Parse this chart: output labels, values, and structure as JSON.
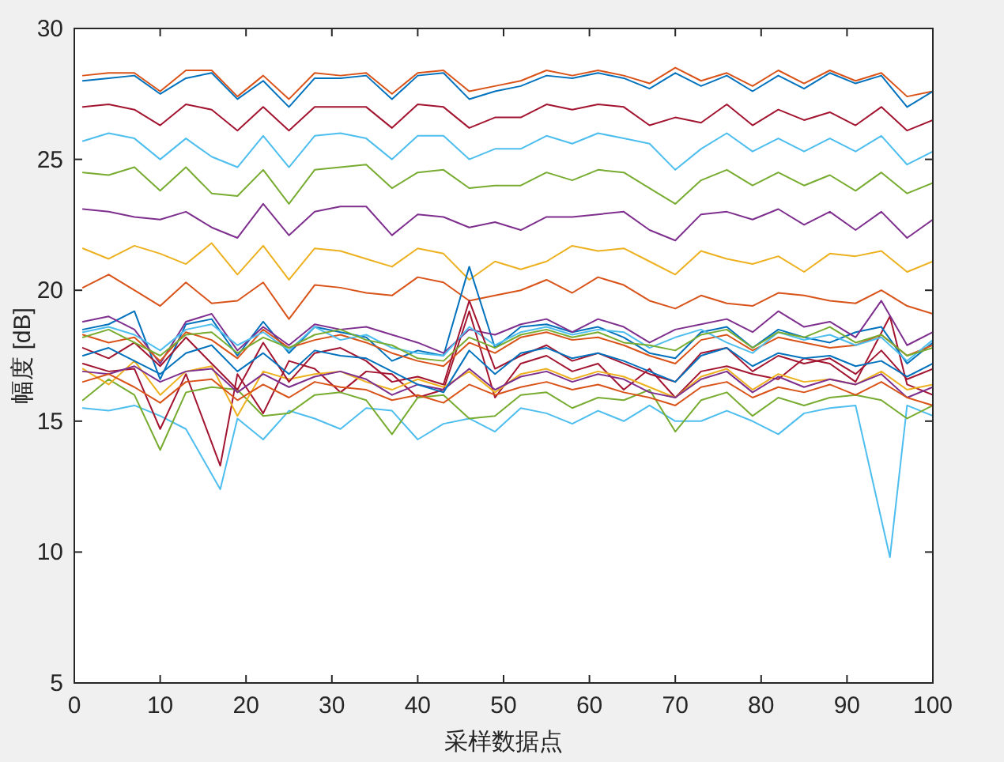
{
  "chart_data": {
    "type": "line",
    "xlabel": "采样数据点",
    "ylabel": "幅度 [dB]",
    "xlim": [
      0,
      100
    ],
    "ylim": [
      5,
      30
    ],
    "xticks": [
      0,
      10,
      20,
      30,
      40,
      50,
      60,
      70,
      80,
      90,
      100
    ],
    "yticks": [
      5,
      10,
      15,
      20,
      25,
      30
    ],
    "x": [
      1,
      4,
      7,
      10,
      13,
      16,
      19,
      22,
      25,
      28,
      31,
      34,
      37,
      40,
      43,
      46,
      49,
      52,
      55,
      58,
      61,
      64,
      67,
      70,
      73,
      76,
      79,
      82,
      85,
      88,
      91,
      94,
      97,
      100
    ],
    "series": [
      {
        "color": "#d95319",
        "values": [
          28.2,
          28.3,
          28.3,
          27.6,
          28.4,
          28.4,
          27.4,
          28.2,
          27.3,
          28.3,
          28.2,
          28.3,
          27.5,
          28.3,
          28.4,
          27.6,
          27.8,
          28.0,
          28.4,
          28.2,
          28.4,
          28.2,
          27.9,
          28.5,
          28.0,
          28.3,
          27.8,
          28.4,
          27.9,
          28.4,
          28.0,
          28.3,
          27.4,
          27.6
        ]
      },
      {
        "color": "#0072bd",
        "values": [
          28.0,
          28.1,
          28.2,
          27.5,
          28.1,
          28.3,
          27.3,
          28.0,
          27.0,
          28.1,
          28.1,
          28.2,
          27.3,
          28.2,
          28.3,
          27.3,
          27.6,
          27.8,
          28.2,
          28.1,
          28.3,
          28.1,
          27.7,
          28.3,
          27.8,
          28.2,
          27.6,
          28.2,
          27.7,
          28.3,
          27.9,
          28.2,
          27.0,
          27.6
        ]
      },
      {
        "color": "#a2142f",
        "values": [
          27.0,
          27.1,
          26.9,
          26.3,
          27.1,
          26.9,
          26.1,
          27.0,
          26.1,
          27.0,
          27.0,
          27.0,
          26.2,
          27.1,
          27.0,
          26.2,
          26.6,
          26.6,
          27.1,
          26.9,
          27.1,
          27.0,
          26.3,
          26.6,
          26.4,
          27.1,
          26.3,
          26.9,
          26.5,
          26.8,
          26.3,
          27.0,
          26.1,
          26.5
        ]
      },
      {
        "color": "#4dbeee",
        "values": [
          25.7,
          26.0,
          25.8,
          25.0,
          25.8,
          25.1,
          24.7,
          25.9,
          24.7,
          25.9,
          26.0,
          25.8,
          25.0,
          25.9,
          25.9,
          25.0,
          25.4,
          25.4,
          25.9,
          25.6,
          26.0,
          25.8,
          25.6,
          24.6,
          25.4,
          26.0,
          25.3,
          25.8,
          25.3,
          25.8,
          25.3,
          25.9,
          24.8,
          25.3
        ]
      },
      {
        "color": "#77ac30",
        "values": [
          24.5,
          24.4,
          24.7,
          23.8,
          24.7,
          23.7,
          23.6,
          24.6,
          23.3,
          24.6,
          24.7,
          24.8,
          23.9,
          24.5,
          24.6,
          23.9,
          24.0,
          24.0,
          24.5,
          24.2,
          24.6,
          24.5,
          23.9,
          23.3,
          24.2,
          24.6,
          24.0,
          24.5,
          24.0,
          24.4,
          23.8,
          24.5,
          23.7,
          24.1
        ]
      },
      {
        "color": "#7e2f8e",
        "values": [
          23.1,
          23.0,
          22.8,
          22.7,
          23.0,
          22.4,
          22.0,
          23.3,
          22.1,
          23.0,
          23.2,
          23.2,
          22.1,
          22.9,
          22.8,
          22.4,
          22.6,
          22.3,
          22.8,
          22.8,
          22.9,
          23.0,
          22.3,
          21.9,
          22.9,
          23.0,
          22.7,
          23.1,
          22.5,
          23.0,
          22.3,
          23.0,
          22.0,
          22.7
        ]
      },
      {
        "color": "#edb120",
        "values": [
          21.6,
          21.2,
          21.7,
          21.4,
          21.0,
          21.8,
          20.6,
          21.7,
          20.4,
          21.6,
          21.5,
          21.2,
          20.9,
          21.6,
          21.4,
          20.4,
          21.1,
          20.8,
          21.1,
          21.7,
          21.5,
          21.6,
          21.1,
          20.6,
          21.5,
          21.2,
          21.0,
          21.3,
          20.7,
          21.4,
          21.3,
          21.5,
          20.7,
          21.1
        ]
      },
      {
        "color": "#d95319",
        "values": [
          20.1,
          20.6,
          20.0,
          19.4,
          20.3,
          19.5,
          19.6,
          20.3,
          18.9,
          20.2,
          20.1,
          19.9,
          19.8,
          20.5,
          20.3,
          19.6,
          19.8,
          20.0,
          20.4,
          19.9,
          20.5,
          20.2,
          19.6,
          19.3,
          19.8,
          19.5,
          19.4,
          19.9,
          19.8,
          19.6,
          19.5,
          20.0,
          19.4,
          19.1
        ]
      },
      {
        "color": "#4dbeee",
        "x": [
          1,
          4,
          7,
          10,
          13,
          17,
          19,
          22,
          25,
          28,
          31,
          34,
          37,
          40,
          43,
          46,
          49,
          52,
          55,
          58,
          61,
          64,
          67,
          70,
          73,
          76,
          79,
          82,
          85,
          88,
          91,
          95,
          97,
          100
        ],
        "values": [
          15.5,
          15.4,
          15.6,
          15.2,
          14.7,
          12.4,
          15.1,
          14.3,
          15.4,
          15.1,
          14.7,
          15.5,
          15.4,
          14.3,
          14.9,
          15.1,
          14.6,
          15.5,
          15.3,
          14.9,
          15.4,
          15.0,
          15.6,
          15.0,
          15.0,
          15.4,
          15.0,
          14.5,
          15.3,
          15.5,
          15.6,
          9.8,
          15.6,
          15.2
        ]
      },
      {
        "color": "#a2142f",
        "x": [
          1,
          4,
          7,
          10,
          13,
          17,
          19,
          22,
          25,
          28,
          31,
          34,
          37,
          40,
          43,
          46,
          49,
          52,
          55,
          58,
          61,
          64,
          67,
          70,
          73,
          76,
          79,
          82,
          85,
          88,
          91,
          95,
          97,
          100
        ],
        "values": [
          17.2,
          16.9,
          17.0,
          14.7,
          16.8,
          13.3,
          16.8,
          15.3,
          17.3,
          17.0,
          16.1,
          16.9,
          16.8,
          15.9,
          16.2,
          19.2,
          15.9,
          17.2,
          17.5,
          16.9,
          17.2,
          16.2,
          17.0,
          15.9,
          16.9,
          17.1,
          16.8,
          16.6,
          17.4,
          17.2,
          16.5,
          19.0,
          16.4,
          16.0
        ]
      },
      {
        "color": "#77ac30",
        "values": [
          15.8,
          16.6,
          16.0,
          13.9,
          16.1,
          16.3,
          16.2,
          15.2,
          15.3,
          16.0,
          16.1,
          15.8,
          14.5,
          15.9,
          16.0,
          15.1,
          15.2,
          16.0,
          16.1,
          15.5,
          15.9,
          15.8,
          16.2,
          14.6,
          15.8,
          16.1,
          15.2,
          15.9,
          15.6,
          15.9,
          16.0,
          15.8,
          15.1,
          15.6
        ]
      },
      {
        "color": "#0072bd",
        "values": [
          18.5,
          18.7,
          19.2,
          16.6,
          18.7,
          18.9,
          17.5,
          18.8,
          17.6,
          18.6,
          18.4,
          18.2,
          17.3,
          17.7,
          17.5,
          20.9,
          17.8,
          18.6,
          18.7,
          18.4,
          18.6,
          18.2,
          17.6,
          17.4,
          18.4,
          18.6,
          17.8,
          18.5,
          18.2,
          18.0,
          18.4,
          18.6,
          17.2,
          18.0
        ]
      },
      {
        "color": "#7e2f8e",
        "values": [
          18.8,
          19.0,
          18.5,
          17.2,
          18.8,
          19.1,
          17.7,
          18.6,
          17.9,
          18.7,
          18.5,
          18.6,
          18.3,
          18.0,
          17.6,
          18.5,
          18.3,
          18.7,
          18.9,
          18.4,
          18.9,
          18.6,
          18.0,
          18.5,
          18.7,
          18.9,
          18.4,
          19.2,
          18.6,
          18.8,
          18.2,
          19.6,
          17.9,
          18.4
        ]
      },
      {
        "color": "#d95319",
        "values": [
          18.3,
          18.0,
          18.2,
          17.3,
          18.4,
          18.1,
          17.4,
          18.5,
          17.8,
          18.1,
          18.3,
          18.0,
          17.6,
          17.3,
          17.1,
          18.0,
          17.6,
          18.2,
          18.4,
          18.1,
          18.2,
          17.9,
          17.5,
          17.2,
          18.1,
          18.3,
          17.7,
          18.2,
          18.0,
          17.8,
          17.9,
          18.3,
          17.5,
          17.9
        ]
      },
      {
        "color": "#edb120",
        "values": [
          17.0,
          16.4,
          17.3,
          16.0,
          16.9,
          17.1,
          15.2,
          16.9,
          16.6,
          16.8,
          16.9,
          16.5,
          16.2,
          16.6,
          16.3,
          16.9,
          16.1,
          16.8,
          17.0,
          16.6,
          16.9,
          16.7,
          16.3,
          15.9,
          16.7,
          17.0,
          16.2,
          16.8,
          16.5,
          16.6,
          16.4,
          16.9,
          16.2,
          16.4
        ]
      },
      {
        "color": "#4dbeee",
        "values": [
          18.4,
          18.6,
          18.3,
          17.7,
          18.5,
          18.7,
          17.9,
          18.4,
          17.7,
          18.6,
          18.1,
          18.3,
          17.8,
          17.6,
          17.5,
          18.6,
          17.9,
          18.4,
          18.6,
          18.3,
          18.5,
          18.4,
          17.8,
          18.2,
          18.5,
          18.0,
          17.6,
          18.4,
          18.1,
          18.3,
          17.9,
          18.2,
          17.3,
          18.1
        ]
      },
      {
        "color": "#a2142f",
        "values": [
          17.8,
          17.4,
          18.0,
          17.1,
          18.2,
          17.2,
          16.2,
          18.0,
          16.5,
          17.6,
          17.8,
          17.3,
          16.5,
          16.7,
          16.4,
          19.6,
          17.0,
          17.5,
          17.9,
          17.3,
          17.6,
          17.2,
          16.8,
          16.5,
          17.6,
          17.8,
          16.9,
          17.5,
          17.2,
          17.4,
          16.8,
          17.7,
          16.6,
          17.0
        ]
      },
      {
        "color": "#77ac30",
        "values": [
          18.2,
          18.5,
          18.0,
          17.5,
          18.3,
          18.4,
          17.6,
          18.2,
          17.8,
          18.3,
          18.5,
          18.1,
          17.9,
          17.4,
          17.3,
          18.2,
          17.8,
          18.3,
          18.5,
          18.2,
          18.4,
          18.0,
          17.9,
          17.7,
          18.3,
          18.5,
          17.8,
          18.4,
          18.2,
          18.6,
          18.0,
          18.3,
          17.5,
          17.8
        ]
      },
      {
        "color": "#7e2f8e",
        "values": [
          16.9,
          16.8,
          17.1,
          16.5,
          16.9,
          17.0,
          16.1,
          16.8,
          16.3,
          16.7,
          16.9,
          16.6,
          16.0,
          16.4,
          16.2,
          17.0,
          16.2,
          16.7,
          16.9,
          16.5,
          16.8,
          16.6,
          16.1,
          15.9,
          16.6,
          16.9,
          16.1,
          16.7,
          16.3,
          16.6,
          16.4,
          16.8,
          15.9,
          16.3
        ]
      },
      {
        "color": "#0072bd",
        "values": [
          17.5,
          17.8,
          17.3,
          16.8,
          17.6,
          17.9,
          16.9,
          17.6,
          16.8,
          17.7,
          17.5,
          17.4,
          16.9,
          16.4,
          16.1,
          17.7,
          16.8,
          17.6,
          17.8,
          17.4,
          17.6,
          17.3,
          16.9,
          16.5,
          17.5,
          17.8,
          17.1,
          17.6,
          17.4,
          17.5,
          17.1,
          17.3,
          16.7,
          17.2
        ]
      },
      {
        "color": "#d95319",
        "values": [
          16.5,
          16.8,
          16.3,
          15.7,
          16.5,
          16.6,
          15.8,
          16.4,
          15.9,
          16.5,
          16.3,
          16.2,
          15.8,
          16.0,
          15.7,
          16.4,
          16.0,
          16.3,
          16.5,
          16.2,
          16.4,
          16.1,
          15.9,
          15.6,
          16.3,
          16.5,
          15.9,
          16.3,
          16.1,
          16.4,
          16.0,
          16.5,
          15.9,
          15.6
        ]
      }
    ]
  }
}
